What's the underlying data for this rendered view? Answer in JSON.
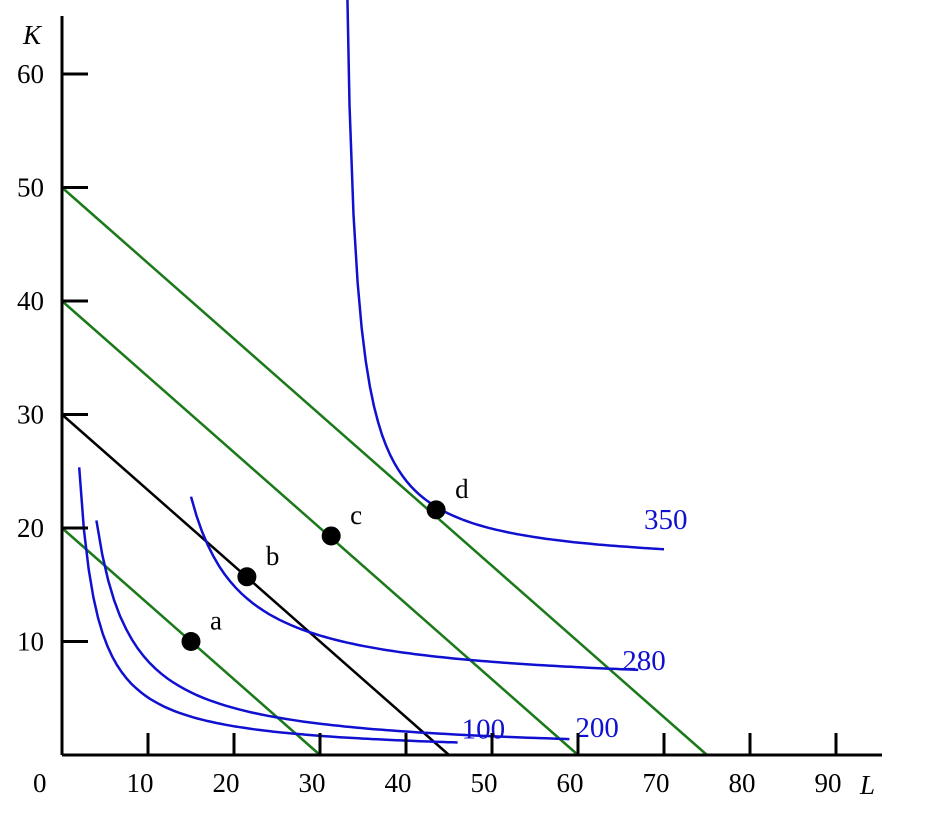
{
  "chart_data": {
    "type": "line",
    "title": "",
    "xlabel": "L",
    "ylabel": "K",
    "xlim": [
      0,
      96
    ],
    "ylim": [
      0,
      61
    ],
    "origin_label": "0",
    "x_ticks": [
      10,
      20,
      30,
      40,
      50,
      60,
      70,
      80,
      90
    ],
    "y_ticks": [
      10,
      20,
      30,
      40,
      50,
      60
    ],
    "grid": false,
    "legend": "none",
    "colors": {
      "isoquant": "#1010d0",
      "isocost": "#1a7a1a",
      "black_line": "#000000",
      "axes": "#000000"
    },
    "isoquants": [
      {
        "label": "100",
        "L_start": 2,
        "L_end": 46,
        "L_shift": 0,
        "K_shift": 0,
        "scale": 50.67
      },
      {
        "label": "200",
        "L_start": 4,
        "L_end": 59,
        "L_shift": 0,
        "K_shift": 0,
        "scale": 82.67
      },
      {
        "label": "280",
        "L_start": 15,
        "L_end": 67,
        "L_shift": 9.2,
        "K_shift": 5.8,
        "scale": 98.34
      },
      {
        "label": "350",
        "L_start": 32,
        "L_end": 70,
        "L_shift": 31.9,
        "K_shift": 16.5,
        "scale": 62.23
      }
    ],
    "isocost_lines": [
      {
        "K_intercept": 20,
        "L_intercept": 30,
        "color": "green"
      },
      {
        "K_intercept": 40,
        "L_intercept": 60,
        "color": "green"
      },
      {
        "K_intercept": 50,
        "L_intercept": 75,
        "color": "green"
      },
      {
        "K_intercept": 30,
        "L_intercept": 45,
        "color": "black"
      }
    ],
    "points": [
      {
        "label": "a",
        "L": 15,
        "K": 10
      },
      {
        "label": "b",
        "L": 21.5,
        "K": 15.7
      },
      {
        "label": "c",
        "L": 31.3,
        "K": 19.3
      },
      {
        "label": "d",
        "L": 43.5,
        "K": 21.6
      }
    ]
  }
}
